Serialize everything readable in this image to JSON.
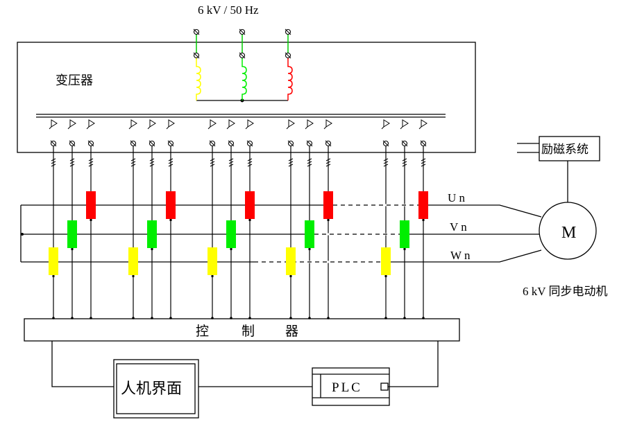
{
  "supply_label": "6 kV / 50 Hz",
  "transformer_label": "变压器",
  "excitation_label": "励磁系统",
  "motor_symbol": "M",
  "motor_label": "6 kV 同步电动机",
  "phases": {
    "u": "U n",
    "v": "V n",
    "w": "W n"
  },
  "controller_label": [
    "控",
    "制",
    "器"
  ],
  "hmi_label": "人机界面",
  "plc_label": "PLC",
  "colors": {
    "u": "#ff0000",
    "v": "#00ee00",
    "w": "#ffff00",
    "line": "#000000"
  }
}
